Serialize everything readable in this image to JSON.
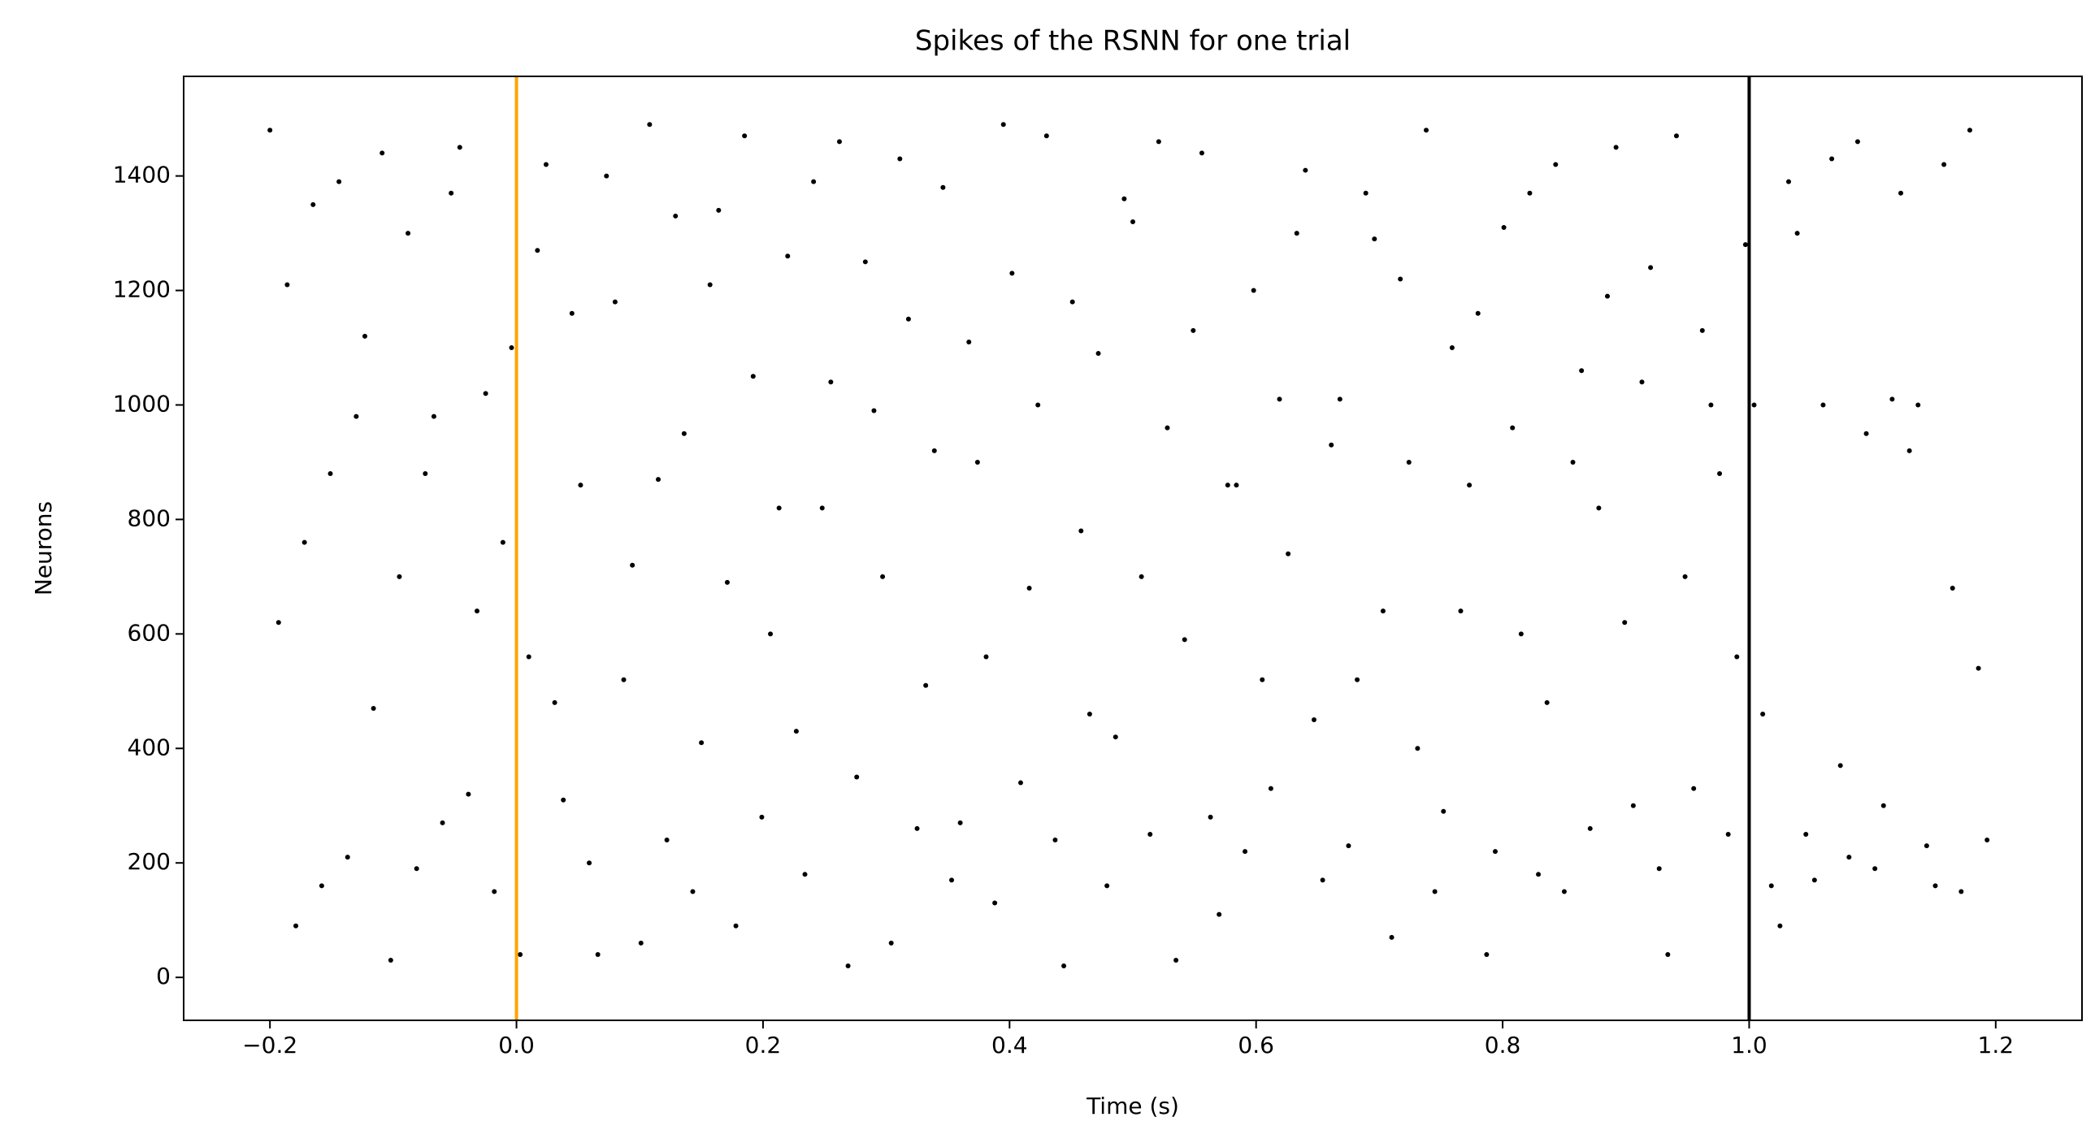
{
  "chart_data": {
    "type": "scatter",
    "title": "Spikes of the RSNN for one trial",
    "x_label": "Time (s)",
    "y_label": "Neurons",
    "color": "#000000",
    "x": [
      -0.2,
      -0.186,
      -0.172,
      -0.158,
      -0.144,
      -0.13,
      -0.116,
      -0.102,
      -0.088,
      -0.074,
      -0.06,
      -0.046,
      -0.032,
      -0.018,
      -0.004,
      0.01,
      0.024,
      0.038,
      0.052,
      0.066,
      0.08,
      0.094,
      0.108,
      0.122,
      0.136,
      0.15,
      0.164,
      0.178,
      0.192,
      0.206,
      0.22,
      0.234,
      0.248,
      0.262,
      0.276,
      0.29,
      0.304,
      0.318,
      0.332,
      0.346,
      0.36,
      0.374,
      0.388,
      0.402,
      0.416,
      0.43,
      0.444,
      0.458,
      0.472,
      0.486,
      0.5,
      0.514,
      0.528,
      0.542,
      0.556,
      0.57,
      0.584,
      0.598,
      0.612,
      0.626,
      0.64,
      0.654,
      0.668,
      0.682,
      0.696,
      0.71,
      0.724,
      0.738,
      0.752,
      0.766,
      0.78,
      0.794,
      0.808,
      0.822,
      0.836,
      0.85,
      0.864,
      0.878,
      0.892,
      0.906,
      0.92,
      0.934,
      0.948,
      0.962,
      0.976,
      0.99,
      1.004,
      1.018,
      1.032,
      1.046,
      1.06,
      1.074,
      1.088,
      1.102,
      1.116,
      1.13,
      1.144,
      1.158,
      1.172,
      1.186,
      -0.193,
      -0.179,
      -0.165,
      -0.151,
      -0.137,
      -0.123,
      -0.109,
      -0.095,
      -0.081,
      -0.067,
      -0.053,
      -0.039,
      -0.025,
      -0.011,
      0.003,
      0.017,
      0.031,
      0.045,
      0.059,
      0.073,
      0.087,
      0.101,
      0.115,
      0.129,
      0.143,
      0.157,
      0.171,
      0.185,
      0.199,
      0.213,
      0.227,
      0.241,
      0.255,
      0.269,
      0.283,
      0.297,
      0.311,
      0.325,
      0.339,
      0.353,
      0.367,
      0.381,
      0.395,
      0.409,
      0.423,
      0.437,
      0.451,
      0.465,
      0.479,
      0.493,
      0.507,
      0.521,
      0.535,
      0.549,
      0.563,
      0.577,
      0.591,
      0.605,
      0.619,
      0.633,
      0.647,
      0.661,
      0.675,
      0.689,
      0.703,
      0.717,
      0.731,
      0.745,
      0.759,
      0.773,
      0.787,
      0.801,
      0.815,
      0.829,
      0.843,
      0.857,
      0.871,
      0.885,
      0.899,
      0.913,
      0.927,
      0.941,
      0.955,
      0.969,
      0.983,
      0.997,
      1.011,
      1.025,
      1.039,
      1.053,
      1.067,
      1.081,
      1.095,
      1.109,
      1.123,
      1.137,
      1.151,
      1.165,
      1.179,
      1.193
    ],
    "y": [
      1480,
      1210,
      760,
      160,
      1390,
      980,
      470,
      30,
      1300,
      880,
      270,
      1450,
      640,
      150,
      1100,
      560,
      1420,
      310,
      860,
      40,
      1180,
      720,
      1490,
      240,
      950,
      410,
      1340,
      90,
      1050,
      600,
      1260,
      180,
      820,
      1460,
      350,
      990,
      60,
      1150,
      510,
      1380,
      270,
      900,
      130,
      1230,
      680,
      1470,
      20,
      780,
      1090,
      420,
      1320,
      250,
      960,
      590,
      1440,
      110,
      860,
      1200,
      330,
      740,
      1410,
      170,
      1010,
      520,
      1290,
      70,
      900,
      1480,
      290,
      640,
      1160,
      220,
      960,
      1370,
      480,
      150,
      1060,
      820,
      1450,
      300,
      1240,
      40,
      700,
      1130,
      880,
      560,
      1000,
      160,
      1390,
      250,
      1000,
      370,
      1460,
      190,
      1010,
      920,
      230,
      1420,
      150,
      540,
      620,
      90,
      1350,
      880,
      210,
      1120,
      1440,
      700,
      190,
      980,
      1370,
      320,
      1020,
      760,
      40,
      1270,
      480,
      1160,
      200,
      1400,
      520,
      60,
      870,
      1330,
      150,
      1210,
      690,
      1470,
      280,
      820,
      430,
      1390,
      1040,
      20,
      1250,
      700,
      1430,
      260,
      920,
      170,
      1110,
      560,
      1490,
      340,
      1000,
      240,
      1180,
      460,
      160,
      1360,
      700,
      1460,
      30,
      1130,
      280,
      860,
      220,
      520,
      1010,
      1300,
      450,
      930,
      230,
      1370,
      640,
      1220,
      400,
      150,
      1100,
      860,
      40,
      1310,
      600,
      180,
      1420,
      900,
      260,
      1190,
      620,
      1040,
      190,
      1470,
      330,
      1000,
      250,
      1280,
      460,
      90,
      1300,
      170,
      1430,
      210,
      950,
      300,
      1370,
      1000,
      160,
      680,
      1480,
      240
    ],
    "vlines": [
      {
        "x": 0,
        "color": "#ffa500"
      },
      {
        "x": 1,
        "color": "#000000"
      }
    ],
    "xlim": [
      -0.27,
      1.27
    ],
    "ylim": [
      -75,
      1574
    ],
    "xticks": [
      {
        "value": -0.2,
        "label": "−0.2"
      },
      {
        "value": 0,
        "label": "0.0"
      },
      {
        "value": 0.2,
        "label": "0.2"
      },
      {
        "value": 0.4,
        "label": "0.4"
      },
      {
        "value": 0.6,
        "label": "0.6"
      },
      {
        "value": 0.8,
        "label": "0.8"
      },
      {
        "value": 1,
        "label": "1.0"
      },
      {
        "value": 1.2,
        "label": "1.2"
      }
    ],
    "yticks": [
      0,
      200,
      400,
      600,
      800,
      1000,
      1200,
      1400
    ]
  }
}
